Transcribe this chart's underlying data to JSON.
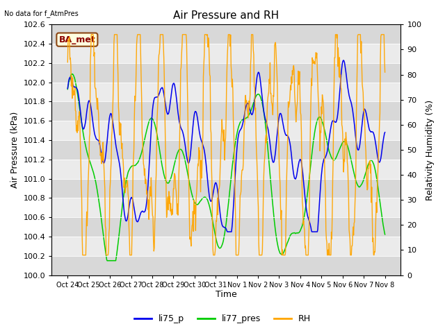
{
  "title": "Air Pressure and RH",
  "subtitle": "No data for f_AtmPres",
  "annotation": "BA_met",
  "xlabel": "Time",
  "ylabel_left": "Air Pressure (kPa)",
  "ylabel_right": "Relativity Humidity (%)",
  "ylim_left": [
    100.0,
    102.6
  ],
  "ylim_right": [
    0,
    100
  ],
  "yticks_left": [
    100.0,
    100.2,
    100.4,
    100.6,
    100.8,
    101.0,
    101.2,
    101.4,
    101.6,
    101.8,
    102.0,
    102.2,
    102.4,
    102.6
  ],
  "yticks_right": [
    0,
    10,
    20,
    30,
    40,
    50,
    60,
    70,
    80,
    90,
    100
  ],
  "color_li75": "#0000EE",
  "color_li77": "#00CC00",
  "color_rh": "#FFA500",
  "legend_labels": [
    "li75_p",
    "li77_pres",
    "RH"
  ],
  "plot_bg_color": "#EBEBEB",
  "stripe_color": "#D8D8D8",
  "title_fontsize": 11,
  "axis_fontsize": 9,
  "tick_fontsize": 8,
  "legend_fontsize": 9,
  "xtick_labels": [
    "Oct 24",
    "Oct 25",
    "Oct 26",
    "Oct 27",
    "Oct 28",
    "Oct 29",
    "Oct 30",
    "Oct 31",
    "Nov 1",
    "Nov 2",
    "Nov 3",
    "Nov 4",
    "Nov 5",
    "Nov 6",
    "Nov 7",
    "Nov 8"
  ],
  "num_points": 700
}
